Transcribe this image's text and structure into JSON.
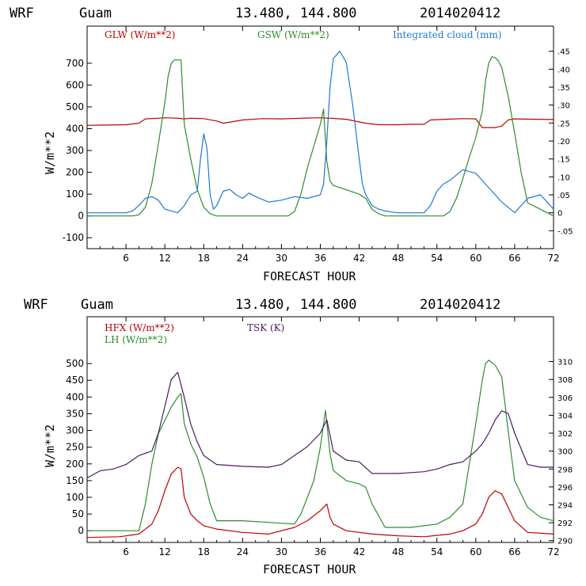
{
  "chart_data": [
    {
      "type": "line",
      "header": {
        "model": "WRF",
        "location": "Guam",
        "coords": "13.480, 144.800",
        "date": "2014020412"
      },
      "xlabel": "FORECAST HOUR",
      "ylabel": "W/m**2",
      "xlim": [
        0,
        72
      ],
      "ylim": [
        -150,
        870
      ],
      "y2lim": [
        -0.1,
        0.52
      ],
      "xticks": [
        6,
        12,
        18,
        24,
        30,
        36,
        42,
        48,
        54,
        60,
        66,
        72
      ],
      "xtick_labels": [
        "6",
        "12",
        "18",
        "24",
        "30",
        "36",
        "42",
        "48",
        "54",
        "60",
        "66",
        "72"
      ],
      "yticks": [
        -100,
        0,
        100,
        200,
        300,
        400,
        500,
        600,
        700
      ],
      "ytick_labels": [
        "-100",
        "0",
        "100",
        "200",
        "300",
        "400",
        "500",
        "600",
        "700"
      ],
      "y2ticks": [
        -0.05,
        0,
        0.05,
        0.1,
        0.15,
        0.2,
        0.25,
        0.3,
        0.35,
        0.4,
        0.45
      ],
      "y2tick_labels": [
        "-.05",
        "0",
        ".05",
        ".10",
        ".15",
        ".20",
        ".25",
        ".30",
        ".35",
        ".40",
        ".45"
      ],
      "series": [
        {
          "name": "GLW (W/m**2)",
          "color": "#c00000",
          "axis": "left",
          "x": [
            0,
            6,
            8,
            9,
            11,
            12,
            14,
            15,
            16,
            18,
            20,
            21,
            24,
            27,
            30,
            33,
            36,
            38,
            40,
            43,
            45,
            46,
            48,
            50,
            52,
            53,
            56,
            58,
            60,
            61,
            63,
            64,
            65,
            66,
            69,
            72
          ],
          "y": [
            415,
            418,
            425,
            445,
            448,
            450,
            448,
            445,
            448,
            446,
            435,
            425,
            440,
            446,
            445,
            448,
            450,
            447,
            443,
            425,
            418,
            418,
            418,
            420,
            420,
            440,
            444,
            446,
            445,
            405,
            405,
            412,
            440,
            445,
            443,
            442
          ]
        },
        {
          "name": "GSW (W/m**2)",
          "color": "#2e8b2e",
          "axis": "left",
          "x": [
            0,
            7,
            8,
            9,
            10,
            11,
            12,
            12.5,
            13,
            13.5,
            14,
            14.5,
            15,
            16,
            17,
            18,
            19,
            20,
            31,
            32,
            33,
            34,
            35,
            36,
            36.5,
            37,
            37.5,
            38,
            39,
            40,
            41,
            42,
            43,
            44,
            45,
            46,
            55,
            56,
            57,
            58,
            59,
            60,
            61,
            61.5,
            62,
            62.5,
            63,
            63.5,
            64,
            65,
            66,
            67,
            68,
            72
          ],
          "y": [
            0,
            0,
            5,
            40,
            150,
            330,
            520,
            640,
            700,
            715,
            715,
            715,
            420,
            260,
            120,
            40,
            10,
            0,
            0,
            20,
            100,
            220,
            320,
            420,
            490,
            250,
            160,
            140,
            130,
            120,
            110,
            100,
            80,
            30,
            10,
            0,
            0,
            20,
            80,
            170,
            270,
            360,
            480,
            620,
            700,
            730,
            725,
            710,
            680,
            550,
            380,
            200,
            60,
            0
          ]
        },
        {
          "name": "Integrated cloud (mm)",
          "color": "#1e78d0",
          "axis": "right",
          "x": [
            0,
            6,
            7,
            8,
            9,
            10,
            11,
            12,
            13,
            14,
            15,
            16,
            17,
            17.5,
            18,
            18.5,
            19,
            19.5,
            20,
            21,
            22,
            23,
            24,
            25,
            26,
            28,
            30,
            32,
            34,
            35,
            36,
            36.5,
            37,
            37.5,
            38,
            39,
            40,
            41,
            42,
            42.5,
            43,
            44,
            45,
            46,
            47,
            48,
            52,
            53,
            54,
            55,
            56,
            57,
            58,
            59,
            60,
            61,
            62,
            64,
            66,
            68,
            70,
            72
          ],
          "y": [
            0,
            0,
            0.005,
            0.02,
            0.04,
            0.045,
            0.035,
            0.01,
            0.005,
            0.0,
            0.02,
            0.05,
            0.06,
            0.15,
            0.22,
            0.18,
            0.05,
            0.01,
            0.02,
            0.06,
            0.065,
            0.05,
            0.04,
            0.055,
            0.045,
            0.03,
            0.035,
            0.045,
            0.04,
            0.045,
            0.05,
            0.08,
            0.2,
            0.35,
            0.43,
            0.45,
            0.42,
            0.3,
            0.15,
            0.08,
            0.05,
            0.02,
            0.01,
            0.005,
            0.002,
            0.0,
            0.0,
            0.02,
            0.06,
            0.08,
            0.09,
            0.105,
            0.12,
            0.115,
            0.11,
            0.09,
            0.07,
            0.03,
            0.0,
            0.04,
            0.05,
            0.01
          ]
        }
      ]
    },
    {
      "type": "line",
      "header": {
        "model": "WRF",
        "location": "Guam",
        "coords": "13.480, 144.800",
        "date": "2014020412"
      },
      "xlabel": "FORECAST HOUR",
      "ylabel": "W/m**2",
      "xlim": [
        0,
        72
      ],
      "ylim": [
        -35,
        640
      ],
      "y2lim": [
        289.8,
        315
      ],
      "xticks": [
        6,
        12,
        18,
        24,
        30,
        36,
        42,
        48,
        54,
        60,
        66,
        72
      ],
      "xtick_labels": [
        "6",
        "12",
        "18",
        "24",
        "30",
        "36",
        "42",
        "48",
        "54",
        "60",
        "66",
        "72"
      ],
      "yticks": [
        0,
        50,
        100,
        150,
        200,
        250,
        300,
        350,
        400,
        450,
        500
      ],
      "ytick_labels": [
        "0",
        "50",
        "100",
        "150",
        "200",
        "250",
        "300",
        "350",
        "400",
        "450",
        "500"
      ],
      "y2ticks": [
        290,
        292,
        294,
        296,
        298,
        300,
        302,
        304,
        306,
        308,
        310
      ],
      "y2tick_labels": [
        "290",
        "292",
        "294",
        "296",
        "298",
        "300",
        "302",
        "304",
        "306",
        "308",
        "310"
      ],
      "series": [
        {
          "name": "HFX (W/m**2)",
          "color": "#c00000",
          "axis": "left",
          "x": [
            0,
            5,
            8,
            10,
            11,
            12,
            13,
            14,
            14.5,
            15,
            16,
            17,
            18,
            20,
            24,
            28,
            32,
            34,
            36,
            37,
            37.5,
            38,
            40,
            44,
            48,
            52,
            56,
            58,
            60,
            61,
            62,
            63,
            64,
            65,
            66,
            68,
            72
          ],
          "y": [
            -20,
            -18,
            -10,
            20,
            60,
            120,
            170,
            190,
            185,
            100,
            50,
            30,
            15,
            5,
            -5,
            -10,
            10,
            30,
            60,
            80,
            40,
            20,
            0,
            -10,
            -15,
            -18,
            -10,
            0,
            20,
            50,
            100,
            120,
            110,
            70,
            30,
            -5,
            -10
          ]
        },
        {
          "name": "LH (W/m**2)",
          "color": "#2e8b2e",
          "axis": "left",
          "x": [
            0,
            8,
            9,
            10,
            11,
            12,
            13,
            14,
            14.5,
            15,
            16,
            17,
            18,
            19,
            20,
            24,
            28,
            32,
            33,
            35,
            36,
            36.8,
            37.5,
            38,
            40,
            42,
            43,
            44,
            46,
            50,
            54,
            56,
            58,
            59,
            60,
            61,
            61.5,
            62,
            63,
            64,
            65,
            66,
            68,
            70,
            72
          ],
          "y": [
            0,
            0,
            80,
            200,
            290,
            330,
            370,
            400,
            410,
            320,
            260,
            220,
            160,
            80,
            30,
            30,
            25,
            20,
            50,
            150,
            250,
            360,
            230,
            180,
            150,
            140,
            130,
            80,
            10,
            10,
            20,
            40,
            80,
            200,
            320,
            450,
            500,
            510,
            495,
            460,
            300,
            150,
            70,
            40,
            30
          ]
        },
        {
          "name": "TSK (K)",
          "color": "#4b1a5e",
          "axis": "right",
          "x": [
            0,
            2,
            4,
            6,
            8,
            10,
            11,
            12,
            13,
            14,
            15,
            16,
            17,
            18,
            19,
            20,
            24,
            28,
            30,
            32,
            34,
            36,
            37,
            38,
            40,
            42,
            44,
            48,
            52,
            54,
            56,
            58,
            60,
            61,
            62,
            63,
            64,
            65,
            66,
            68,
            70,
            72
          ],
          "y": [
            297,
            297.8,
            298,
            298.5,
            299.5,
            300,
            302,
            305,
            308,
            308.8,
            306,
            303,
            301,
            299.5,
            299,
            298.5,
            298.3,
            298.2,
            298.5,
            299.5,
            300.5,
            302,
            303.5,
            300,
            299,
            298.8,
            297.5,
            297.5,
            297.7,
            298,
            298.5,
            298.8,
            300,
            300.8,
            302,
            303.5,
            304.5,
            304.2,
            302,
            298.5,
            298.2,
            298.2
          ]
        }
      ]
    }
  ]
}
